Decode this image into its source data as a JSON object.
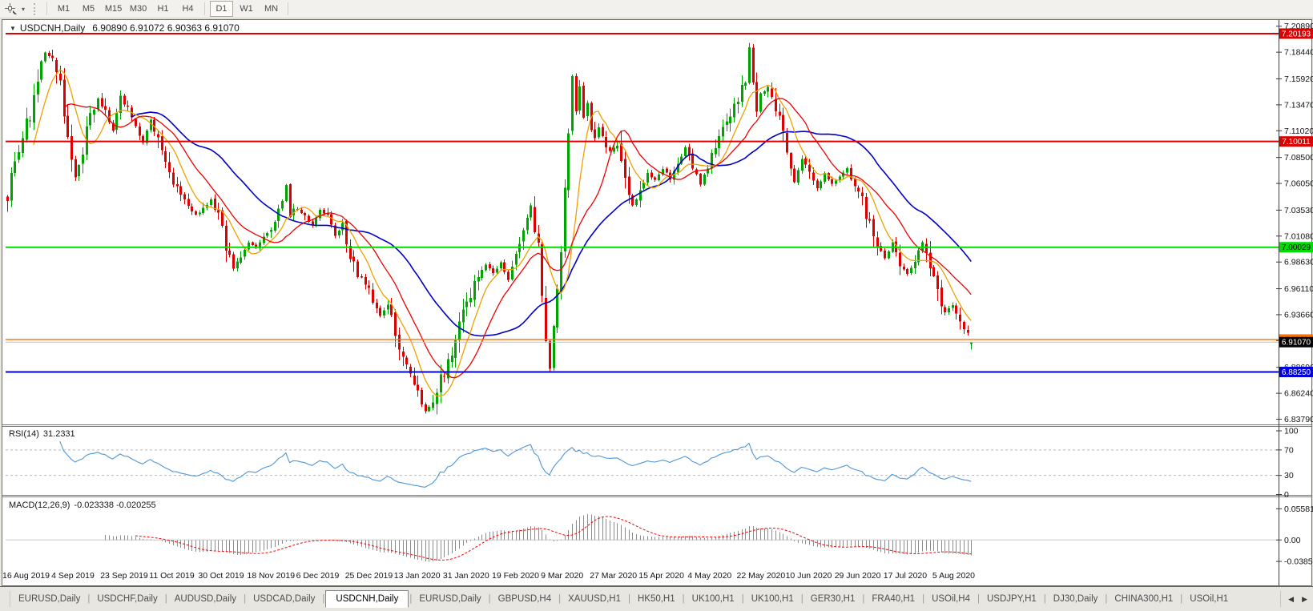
{
  "toolbar": {
    "timeframes": [
      "M1",
      "M5",
      "M15",
      "M30",
      "H1",
      "H4",
      "D1",
      "W1",
      "MN"
    ],
    "active_timeframe": "D1",
    "dropdown_glyph": "▾"
  },
  "chart": {
    "marker": "▼",
    "title": "USDCNH,Daily",
    "ohlc": "6.90890 6.91072 6.90363 6.91070"
  },
  "rsi": {
    "label": "RSI(14)",
    "value": "31.2331",
    "ticks": [
      "100",
      "70",
      "30",
      "0"
    ]
  },
  "macd": {
    "label": "MACD(12,26,9)",
    "values": "-0.023338 -0.020255",
    "ticks": [
      "0.05581",
      "0.00",
      "-0.03852"
    ]
  },
  "price_axis": {
    "ticks": [
      "7.20890",
      "7.18440",
      "7.15920",
      "7.13470",
      "7.11020",
      "7.08500",
      "7.06050",
      "7.03530",
      "7.01080",
      "6.98630",
      "6.96110",
      "6.93660",
      "6.91210",
      "6.88690",
      "6.86240",
      "6.83790"
    ],
    "badges": [
      {
        "text": "7.20193",
        "price": 7.20193,
        "bg": "#DD0000",
        "fg": "#FFFFFF"
      },
      {
        "text": "7.10011",
        "price": 7.10011,
        "bg": "#DD0000",
        "fg": "#FFFFFF"
      },
      {
        "text": "7.00029",
        "price": 7.00029,
        "bg": "#00DC00",
        "fg": "#000000"
      },
      {
        "text": "6.91318",
        "price": 6.91318,
        "bg": "#FF7000",
        "fg": "#FFFFFF"
      },
      {
        "text": "6.91070",
        "price": 6.9107,
        "bg": "#000000",
        "fg": "#FFFFFF"
      },
      {
        "text": "6.88250",
        "price": 6.8825,
        "bg": "#0000DD",
        "fg": "#FFFFFF"
      }
    ]
  },
  "tabs": {
    "items": [
      "EURUSD,Daily",
      "USDCHF,Daily",
      "AUDUSD,Daily",
      "USDCAD,Daily",
      "USDCNH,Daily",
      "EURUSD,Daily",
      "GBPUSD,H4",
      "XAUUSD,H1",
      "HK50,H1",
      "UK100,H1",
      "UK100,H1",
      "GER30,H1",
      "FRA40,H1",
      "USOil,H4",
      "USDJPY,H1",
      "DJ30,Daily",
      "CHINA300,H1",
      "USOil,H1"
    ],
    "active_index": 4,
    "scroll_left": "◀",
    "scroll_right": "▶"
  },
  "chart_data": {
    "type": "candlestick",
    "symbol": "USDCNH",
    "timeframe": "Daily",
    "bar_count": 257,
    "ylim": [
      6.833,
      7.214
    ],
    "last_ohlc": {
      "o": 6.9089,
      "h": 6.91072,
      "l": 6.90363,
      "c": 6.9107
    },
    "close_anchors": [
      [
        0,
        7.05
      ],
      [
        2,
        7.085
      ],
      [
        4,
        7.105
      ],
      [
        6,
        7.125
      ],
      [
        8,
        7.155
      ],
      [
        10,
        7.185
      ],
      [
        12,
        7.175
      ],
      [
        14,
        7.16
      ],
      [
        16,
        7.1
      ],
      [
        18,
        7.065
      ],
      [
        20,
        7.09
      ],
      [
        22,
        7.125
      ],
      [
        24,
        7.14
      ],
      [
        26,
        7.125
      ],
      [
        28,
        7.11
      ],
      [
        30,
        7.14
      ],
      [
        32,
        7.13
      ],
      [
        34,
        7.115
      ],
      [
        36,
        7.1
      ],
      [
        38,
        7.12
      ],
      [
        40,
        7.1
      ],
      [
        42,
        7.075
      ],
      [
        44,
        7.06
      ],
      [
        46,
        7.05
      ],
      [
        48,
        7.04
      ],
      [
        50,
        7.03
      ],
      [
        52,
        7.035
      ],
      [
        54,
        7.045
      ],
      [
        56,
        7.03
      ],
      [
        58,
        7.0
      ],
      [
        60,
        6.98
      ],
      [
        62,
        6.995
      ],
      [
        64,
        7.005
      ],
      [
        66,
        7.0
      ],
      [
        68,
        7.01
      ],
      [
        70,
        7.015
      ],
      [
        72,
        7.03
      ],
      [
        74,
        7.06
      ],
      [
        75,
        7.03
      ],
      [
        77,
        7.035
      ],
      [
        79,
        7.03
      ],
      [
        81,
        7.02
      ],
      [
        83,
        7.035
      ],
      [
        85,
        7.03
      ],
      [
        87,
        7.01
      ],
      [
        89,
        7.02
      ],
      [
        91,
        6.99
      ],
      [
        93,
        6.975
      ],
      [
        95,
        6.965
      ],
      [
        97,
        6.95
      ],
      [
        99,
        6.935
      ],
      [
        101,
        6.945
      ],
      [
        103,
        6.92
      ],
      [
        105,
        6.9
      ],
      [
        107,
        6.875
      ],
      [
        109,
        6.86
      ],
      [
        111,
        6.845
      ],
      [
        113,
        6.855
      ],
      [
        115,
        6.875
      ],
      [
        117,
        6.895
      ],
      [
        119,
        6.915
      ],
      [
        121,
        6.935
      ],
      [
        123,
        6.955
      ],
      [
        125,
        6.975
      ],
      [
        127,
        6.985
      ],
      [
        129,
        6.975
      ],
      [
        131,
        6.985
      ],
      [
        133,
        6.97
      ],
      [
        135,
        6.99
      ],
      [
        137,
        7.01
      ],
      [
        138,
        7.03
      ],
      [
        139,
        7.04
      ],
      [
        141,
        7.0
      ],
      [
        142,
        6.95
      ],
      [
        143,
        6.91
      ],
      [
        144,
        6.885
      ],
      [
        145,
        6.92
      ],
      [
        146,
        6.96
      ],
      [
        147,
        7.0
      ],
      [
        148,
        7.05
      ],
      [
        149,
        7.11
      ],
      [
        150,
        7.16
      ],
      [
        151,
        7.13
      ],
      [
        152,
        7.155
      ],
      [
        153,
        7.12
      ],
      [
        154,
        7.14
      ],
      [
        155,
        7.11
      ],
      [
        156,
        7.1
      ],
      [
        157,
        7.115
      ],
      [
        158,
        7.105
      ],
      [
        160,
        7.09
      ],
      [
        162,
        7.1
      ],
      [
        164,
        7.06
      ],
      [
        166,
        7.04
      ],
      [
        168,
        7.055
      ],
      [
        170,
        7.07
      ],
      [
        172,
        7.065
      ],
      [
        174,
        7.075
      ],
      [
        176,
        7.065
      ],
      [
        178,
        7.08
      ],
      [
        180,
        7.095
      ],
      [
        182,
        7.075
      ],
      [
        184,
        7.06
      ],
      [
        186,
        7.08
      ],
      [
        188,
        7.095
      ],
      [
        190,
        7.11
      ],
      [
        192,
        7.125
      ],
      [
        194,
        7.14
      ],
      [
        196,
        7.155
      ],
      [
        197,
        7.19
      ],
      [
        198,
        7.155
      ],
      [
        199,
        7.13
      ],
      [
        200,
        7.145
      ],
      [
        202,
        7.15
      ],
      [
        204,
        7.125
      ],
      [
        206,
        7.11
      ],
      [
        208,
        7.08
      ],
      [
        209,
        7.06
      ],
      [
        211,
        7.085
      ],
      [
        213,
        7.07
      ],
      [
        215,
        7.055
      ],
      [
        217,
        7.07
      ],
      [
        219,
        7.06
      ],
      [
        221,
        7.065
      ],
      [
        223,
        7.075
      ],
      [
        225,
        7.06
      ],
      [
        227,
        7.045
      ],
      [
        229,
        7.02
      ],
      [
        231,
        7.0
      ],
      [
        233,
        6.99
      ],
      [
        235,
        7.005
      ],
      [
        237,
        6.985
      ],
      [
        239,
        6.975
      ],
      [
        241,
        6.99
      ],
      [
        243,
        7.005
      ],
      [
        245,
        6.98
      ],
      [
        247,
        6.955
      ],
      [
        249,
        6.94
      ],
      [
        251,
        6.945
      ],
      [
        253,
        6.93
      ],
      [
        255,
        6.92
      ],
      [
        256,
        6.9107
      ]
    ],
    "xlabels": [
      {
        "i": 0,
        "t": "16 Aug 2019"
      },
      {
        "i": 13,
        "t": "4 Sep 2019"
      },
      {
        "i": 26,
        "t": "23 Sep 2019"
      },
      {
        "i": 39,
        "t": "11 Oct 2019"
      },
      {
        "i": 52,
        "t": "30 Oct 2019"
      },
      {
        "i": 65,
        "t": "18 Nov 2019"
      },
      {
        "i": 78,
        "t": "6 Dec 2019"
      },
      {
        "i": 91,
        "t": "25 Dec 2019"
      },
      {
        "i": 104,
        "t": "13 Jan 2020"
      },
      {
        "i": 117,
        "t": "31 Jan 2020"
      },
      {
        "i": 130,
        "t": "19 Feb 2020"
      },
      {
        "i": 143,
        "t": "9 Mar 2020"
      },
      {
        "i": 156,
        "t": "27 Mar 2020"
      },
      {
        "i": 169,
        "t": "15 Apr 2020"
      },
      {
        "i": 182,
        "t": "4 May 2020"
      },
      {
        "i": 195,
        "t": "22 May 2020"
      },
      {
        "i": 208,
        "t": "10 Jun 2020"
      },
      {
        "i": 221,
        "t": "29 Jun 2020"
      },
      {
        "i": 234,
        "t": "17 Jul 2020"
      },
      {
        "i": 247,
        "t": "5 Aug 2020"
      }
    ],
    "hlines": [
      {
        "price": 7.20193,
        "color": "#DD0000",
        "width": 2
      },
      {
        "price": 7.10011,
        "color": "#DD0000",
        "width": 2
      },
      {
        "price": 7.00029,
        "color": "#00DC00",
        "width": 2
      },
      {
        "price": 6.91318,
        "color": "#FF7000",
        "width": 1.4
      },
      {
        "price": 6.9107,
        "color": "#BDBDBD",
        "width": 1
      },
      {
        "price": 6.8825,
        "color": "#0000DD",
        "width": 2
      }
    ],
    "moving_averages": [
      {
        "period": 34,
        "color": "#0000C8",
        "width": 1.6
      },
      {
        "period": 8,
        "color": "#F0A000",
        "width": 1.3
      },
      {
        "period": 16,
        "color": "#F00000",
        "width": 1.3
      }
    ],
    "colors": {
      "up": "#00A400",
      "down": "#DC0000",
      "rsi_line": "#4D96D9",
      "rsi_level": "#B8B8B8",
      "macd_hist": "#8C8C8C",
      "macd_signal": "#FF0000",
      "macd_zero": "#C8C8C8",
      "axis_line": "#3C3C3C",
      "panel_sep": "#7A7A7A"
    },
    "rsi_panel": {
      "period": 14,
      "levels": [
        70,
        30
      ],
      "range": [
        0,
        100
      ],
      "tick_values": [
        100,
        70,
        30,
        0
      ]
    },
    "macd_panel": {
      "fast": 12,
      "slow": 26,
      "signal": 9,
      "range": [
        -0.047,
        0.075
      ],
      "tick_values": [
        0.05581,
        0,
        -0.03852
      ]
    }
  }
}
